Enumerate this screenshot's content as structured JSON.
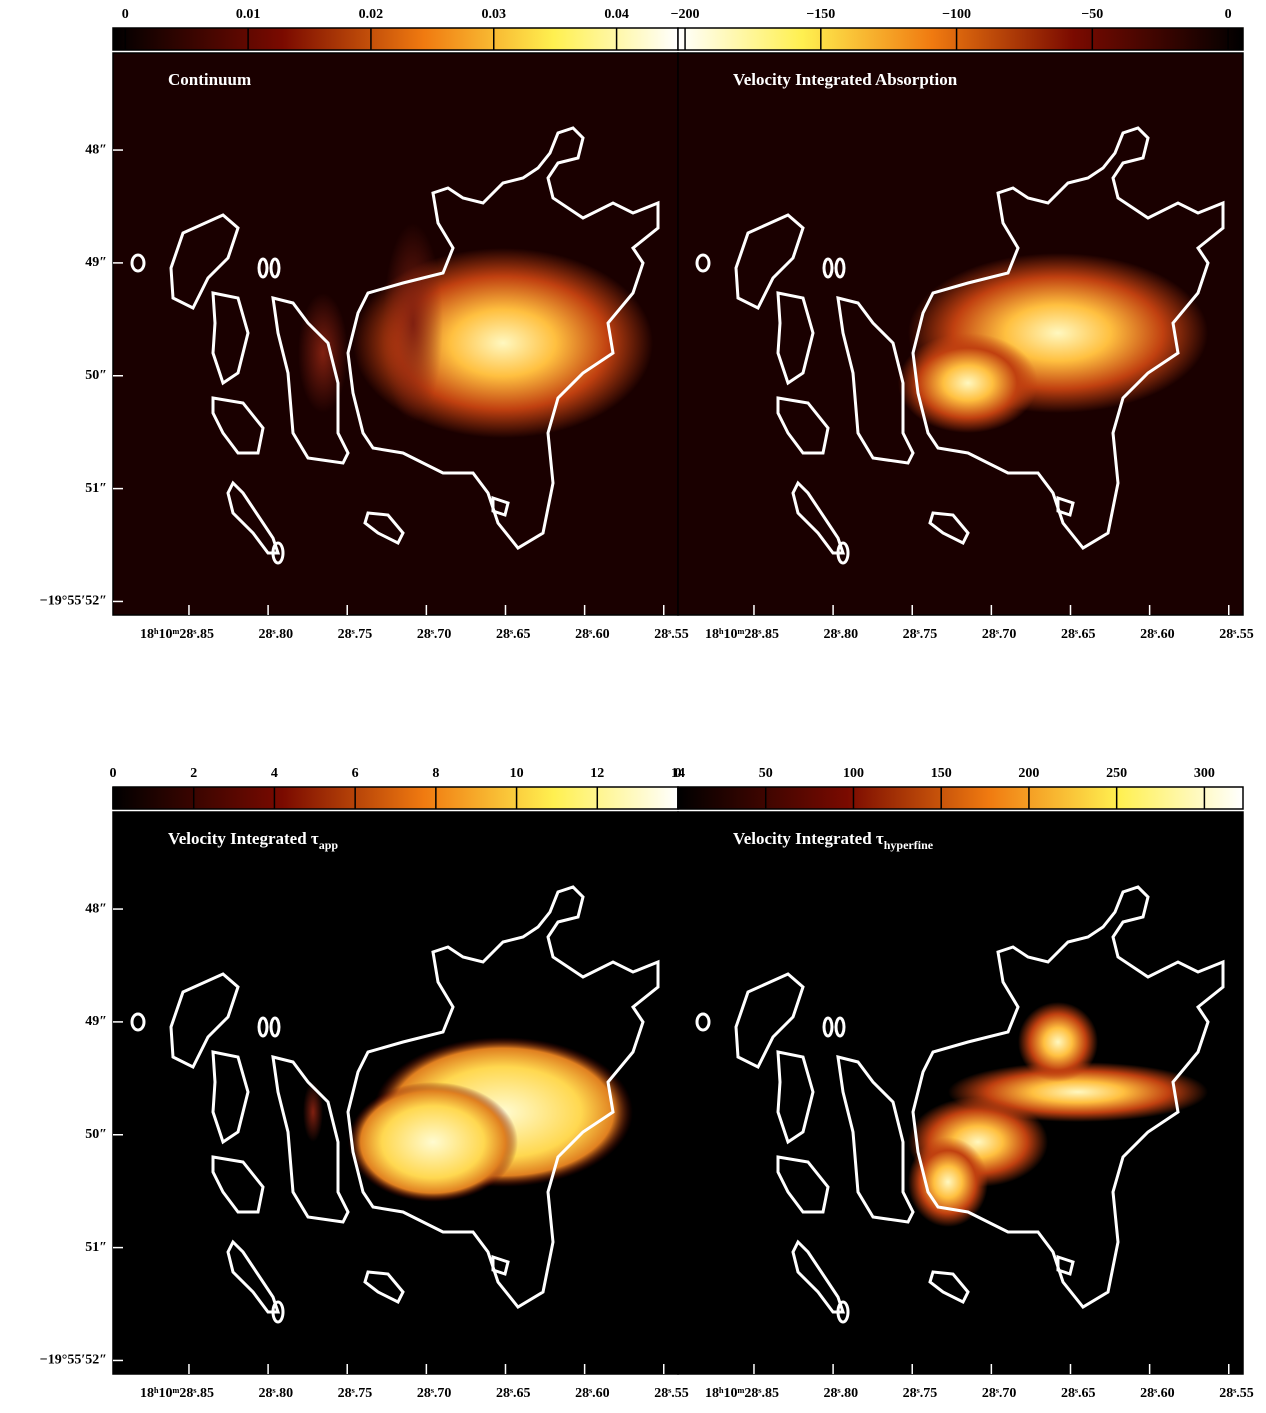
{
  "chart_data": [
    {
      "type": "image",
      "title": "Continuum",
      "colormap_reversed": false,
      "colorbar": {
        "lim": [
          -0.001,
          0.045
        ],
        "ticks": [
          0,
          0.01,
          0.02,
          0.03,
          0.04
        ]
      },
      "xlim": [
        28.898,
        28.541
      ],
      "xticks": [
        {
          "value": 28.85,
          "label": "18ʰ10ᵐ28ˢ.85"
        },
        {
          "value": 28.8,
          "label": "28ˢ.80"
        },
        {
          "value": 28.75,
          "label": "28ˢ.75"
        },
        {
          "value": 28.7,
          "label": "28ˢ.70"
        },
        {
          "value": 28.65,
          "label": "28ˢ.65"
        },
        {
          "value": 28.6,
          "label": "28ˢ.60"
        },
        {
          "value": 28.55,
          "label": "28ˢ.55"
        }
      ],
      "ylim": [
        47.14,
        52.12
      ],
      "yticks": [
        {
          "value": 48,
          "label": "48″"
        },
        {
          "value": 49,
          "label": "49″"
        },
        {
          "value": 50,
          "label": "50″"
        },
        {
          "value": 51,
          "label": "51″"
        },
        {
          "value": 52,
          "label": "−19°55′52″"
        }
      ]
    },
    {
      "type": "image",
      "title": "Velocity Integrated Absorption",
      "colormap_reversed": true,
      "colorbar": {
        "lim": [
          -202.6,
          5.5
        ],
        "ticks": [
          {
            "value": -200,
            "label": "−200"
          },
          {
            "value": -150,
            "label": "−150"
          },
          {
            "value": -100,
            "label": "−100"
          },
          {
            "value": -50,
            "label": "−50"
          },
          0
        ]
      },
      "xlim": [
        28.898,
        28.541
      ],
      "xticks": [
        {
          "value": 28.85,
          "label": "18ʰ10ᵐ28ˢ.85"
        },
        {
          "value": 28.8,
          "label": "28ˢ.80"
        },
        {
          "value": 28.75,
          "label": "28ˢ.75"
        },
        {
          "value": 28.7,
          "label": "28ˢ.70"
        },
        {
          "value": 28.65,
          "label": "28ˢ.65"
        },
        {
          "value": 28.6,
          "label": "28ˢ.60"
        },
        {
          "value": 28.55,
          "label": "28ˢ.55"
        }
      ]
    },
    {
      "type": "image",
      "title": "Velocity Integrated τ",
      "title_subscript": "app",
      "colormap_reversed": false,
      "colorbar": {
        "lim": [
          0,
          14
        ],
        "ticks": [
          0,
          2,
          4,
          6,
          8,
          10,
          12,
          14
        ]
      },
      "xlim": [
        28.898,
        28.541
      ],
      "xticks": [
        {
          "value": 28.85,
          "label": "18ʰ10ᵐ28ˢ.85"
        },
        {
          "value": 28.8,
          "label": "28ˢ.80"
        },
        {
          "value": 28.75,
          "label": "28ˢ.75"
        },
        {
          "value": 28.7,
          "label": "28ˢ.70"
        },
        {
          "value": 28.65,
          "label": "28ˢ.65"
        },
        {
          "value": 28.6,
          "label": "28ˢ.60"
        },
        {
          "value": 28.55,
          "label": "28ˢ.55"
        }
      ],
      "ylim": [
        47.14,
        52.12
      ],
      "yticks": [
        {
          "value": 48,
          "label": "48″"
        },
        {
          "value": 49,
          "label": "49″"
        },
        {
          "value": 50,
          "label": "50″"
        },
        {
          "value": 51,
          "label": "51″"
        },
        {
          "value": 52,
          "label": "−19°55′52″"
        }
      ]
    },
    {
      "type": "image",
      "title": "Velocity Integrated τ",
      "title_subscript": "hyperfine",
      "colormap_reversed": false,
      "colorbar": {
        "lim": [
          0,
          322
        ],
        "ticks": [
          0,
          50,
          100,
          150,
          200,
          250,
          300
        ]
      },
      "xlim": [
        28.898,
        28.541
      ],
      "xticks": [
        {
          "value": 28.85,
          "label": "18ʰ10ᵐ28ˢ.85"
        },
        {
          "value": 28.8,
          "label": "28ˢ.80"
        },
        {
          "value": 28.75,
          "label": "28ˢ.75"
        },
        {
          "value": 28.7,
          "label": "28ˢ.70"
        },
        {
          "value": 28.65,
          "label": "28ˢ.65"
        },
        {
          "value": 28.6,
          "label": "28ˢ.60"
        },
        {
          "value": 28.55,
          "label": "28ˢ.55"
        }
      ]
    }
  ]
}
